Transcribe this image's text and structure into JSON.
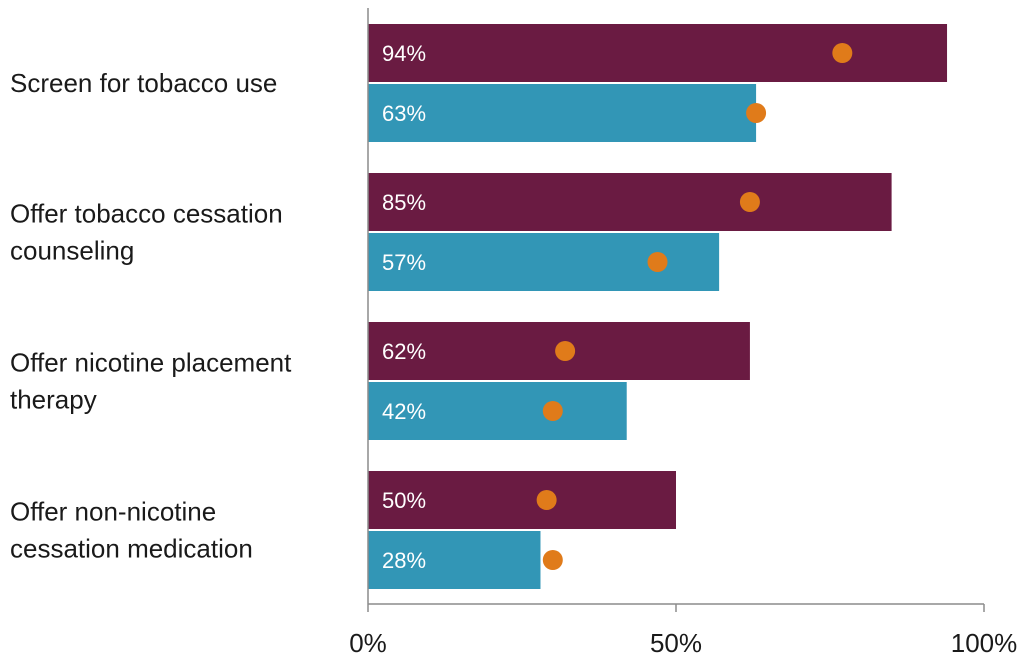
{
  "chart_data": {
    "type": "bar",
    "orientation": "horizontal",
    "categories": [
      [
        "Screen for tobacco use"
      ],
      [
        "Offer tobacco cessation",
        "counseling"
      ],
      [
        "Offer nicotine placement",
        "therapy"
      ],
      [
        "Offer non-nicotine",
        "cessation medication"
      ]
    ],
    "series": [
      {
        "values": [
          94,
          85,
          62,
          50
        ],
        "labels": [
          "94%",
          "85%",
          "62%",
          "50%"
        ],
        "color": "#6a1b42"
      },
      {
        "values": [
          63,
          57,
          42,
          28
        ],
        "labels": [
          "63%",
          "57%",
          "42%",
          "28%"
        ],
        "color": "#3296b6"
      }
    ],
    "markers": {
      "color": "#e07b1a",
      "values": [
        [
          77,
          63
        ],
        [
          62,
          47
        ],
        [
          32,
          30
        ],
        [
          29,
          30
        ]
      ]
    },
    "xlim": [
      0,
      100
    ],
    "xticks": [
      {
        "value": 0,
        "label": "0%"
      },
      {
        "value": 50,
        "label": "50%"
      },
      {
        "value": 100,
        "label": "100%"
      }
    ],
    "title": "",
    "xlabel": "",
    "ylabel": "",
    "grid": false,
    "legend": "none"
  }
}
